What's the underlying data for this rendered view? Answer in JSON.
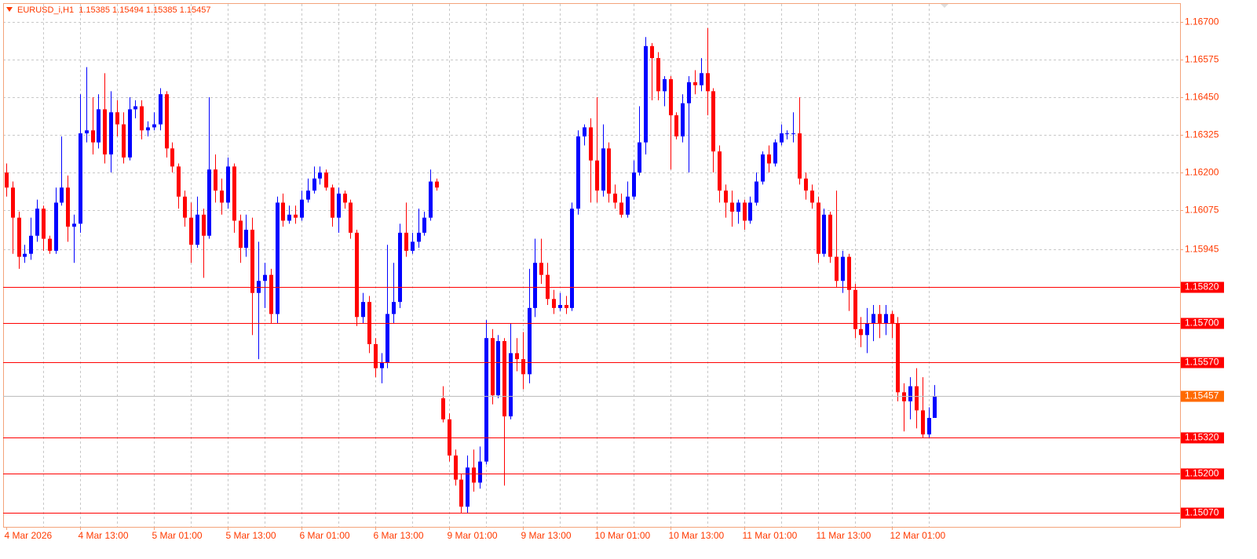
{
  "chart_data": {
    "type": "candlestick",
    "title": "EURUSD_i,H1  1.15385 1.15494 1.15385 1.15457",
    "categories": [
      "4 Mar 2026",
      null,
      null,
      null,
      null,
      null,
      null,
      null,
      null,
      null,
      null,
      null,
      "4 Mar 13:00",
      null,
      null,
      null,
      null,
      null,
      null,
      null,
      null,
      null,
      null,
      null,
      "5 Mar 01:00",
      null,
      null,
      null,
      null,
      null,
      null,
      null,
      null,
      null,
      null,
      null,
      "5 Mar 13:00",
      null,
      null,
      null,
      null,
      null,
      null,
      null,
      null,
      null,
      null,
      null,
      "6 Mar 01:00",
      null,
      null,
      null,
      null,
      null,
      null,
      null,
      null,
      null,
      null,
      null,
      "6 Mar 13:00",
      null,
      null,
      null,
      null,
      null,
      null,
      null,
      null,
      null,
      null,
      null,
      "9 Mar 01:00",
      null,
      null,
      null,
      null,
      null,
      null,
      null,
      null,
      null,
      null,
      null,
      "9 Mar 13:00",
      null,
      null,
      null,
      null,
      null,
      null,
      null,
      null,
      null,
      null,
      null,
      "10 Mar 01:00",
      null,
      null,
      null,
      null,
      null,
      null,
      null,
      null,
      null,
      null,
      null,
      "10 Mar 13:00",
      null,
      null,
      null,
      null,
      null,
      null,
      null,
      null,
      null,
      null,
      null,
      "11 Mar 01:00",
      null,
      null,
      null,
      null,
      null,
      null,
      null,
      null,
      null,
      null,
      null,
      "11 Mar 13:00",
      null,
      null,
      null,
      null,
      null,
      null,
      null,
      null,
      null,
      null,
      null,
      "12 Mar 01:00",
      null,
      null,
      null,
      null,
      null,
      null,
      null
    ],
    "open": [
      1.162,
      1.1615,
      1.1605,
      1.1592,
      1.1593,
      1.1599,
      1.1608,
      1.1598,
      1.1594,
      1.161,
      1.1615,
      1.1602,
      1.1603,
      1.1633,
      1.1634,
      1.163,
      1.1641,
      1.1626,
      1.164,
      1.1636,
      1.1625,
      1.1641,
      1.1642,
      1.1634,
      1.1635,
      1.1636,
      1.1646,
      1.1628,
      1.1622,
      1.1612,
      1.1605,
      1.1596,
      1.1606,
      1.1599,
      1.1621,
      1.1614,
      1.161,
      1.1622,
      1.1604,
      1.1595,
      1.1601,
      1.158,
      1.1584,
      1.1586,
      1.1573,
      1.161,
      1.1604,
      1.1606,
      1.1605,
      1.1611,
      1.1614,
      1.1618,
      1.162,
      1.1615,
      1.1605,
      1.1613,
      1.161,
      1.16,
      1.1572,
      1.1577,
      1.1563,
      1.1555,
      1.1557,
      1.1573,
      1.1577,
      1.16,
      1.1594,
      1.1597,
      1.16,
      1.1605,
      1.1617,
      1.1545,
      1.1538,
      1.1526,
      1.1518,
      1.1509,
      1.1522,
      1.1517,
      1.1524,
      1.1565,
      1.1546,
      1.1564,
      1.1539,
      1.156,
      1.1558,
      1.1553,
      1.1575,
      1.159,
      1.1586,
      1.1578,
      1.1575,
      1.1576,
      1.1575,
      1.1608,
      1.1632,
      1.1635,
      1.1624,
      1.1614,
      1.1628,
      1.1613,
      1.161,
      1.1606,
      1.1612,
      1.162,
      1.163,
      1.1662,
      1.1658,
      1.1647,
      1.1651,
      1.1639,
      1.1632,
      1.1643,
      1.165,
      1.1649,
      1.1653,
      1.1647,
      1.1627,
      1.1614,
      1.161,
      1.1607,
      1.161,
      1.1604,
      1.161,
      1.1617,
      1.1626,
      1.1623,
      1.163,
      1.1633,
      1.1633,
      1.1633,
      1.1618,
      1.1614,
      1.161,
      1.1593,
      1.1606,
      1.1592,
      1.1584,
      1.1592,
      1.1581,
      1.1568,
      1.1566,
      1.157,
      1.1573,
      1.157,
      1.1573,
      1.157,
      1.1547,
      1.1544,
      1.1549,
      1.1541,
      1.1533,
      1.15385
    ],
    "high": [
      1.1623,
      1.1617,
      1.1607,
      1.1596,
      1.1605,
      1.1611,
      1.1609,
      1.1599,
      1.1615,
      1.1632,
      1.1619,
      1.1606,
      1.1646,
      1.1655,
      1.1645,
      1.1646,
      1.1653,
      1.1647,
      1.1644,
      1.164,
      1.1645,
      1.1644,
      1.1644,
      1.1637,
      1.164,
      1.1648,
      1.1647,
      1.163,
      1.1623,
      1.1614,
      1.161,
      1.1612,
      1.1608,
      1.1645,
      1.1626,
      1.1618,
      1.1625,
      1.1623,
      1.1606,
      1.1606,
      1.1605,
      1.1597,
      1.159,
      1.1588,
      1.1612,
      1.1613,
      1.1609,
      1.1609,
      1.1614,
      1.1618,
      1.1622,
      1.1622,
      1.1621,
      1.1616,
      1.1615,
      1.1614,
      1.1611,
      1.1601,
      1.158,
      1.1579,
      1.1565,
      1.156,
      1.1596,
      1.159,
      1.1603,
      1.161,
      1.16,
      1.1608,
      1.1607,
      1.1621,
      1.1618,
      1.1549,
      1.154,
      1.1528,
      1.152,
      1.1526,
      1.1528,
      1.1529,
      1.1571,
      1.1568,
      1.1566,
      1.1565,
      1.157,
      1.1565,
      1.1567,
      1.1588,
      1.1598,
      1.1598,
      1.159,
      1.1581,
      1.158,
      1.1579,
      1.161,
      1.1634,
      1.1636,
      1.1638,
      1.1645,
      1.1636,
      1.163,
      1.1616,
      1.1613,
      1.1617,
      1.1624,
      1.1642,
      1.1665,
      1.1663,
      1.166,
      1.1652,
      1.1652,
      1.164,
      1.1646,
      1.1652,
      1.1654,
      1.1658,
      1.1668,
      1.1648,
      1.1629,
      1.1616,
      1.1614,
      1.1611,
      1.1611,
      1.1612,
      1.162,
      1.1627,
      1.1629,
      1.1631,
      1.1636,
      1.1634,
      1.164,
      1.1645,
      1.162,
      1.1616,
      1.1612,
      1.1608,
      1.1607,
      1.1614,
      1.1594,
      1.1593,
      1.1583,
      1.1572,
      1.1575,
      1.1576,
      1.1576,
      1.1576,
      1.1574,
      1.1572,
      1.155,
      1.1552,
      1.1555,
      1.1552,
      1.1542,
      1.15494
    ],
    "low": [
      1.1612,
      1.1593,
      1.1588,
      1.159,
      1.1591,
      1.1597,
      1.1594,
      1.1593,
      1.1593,
      1.1609,
      1.1597,
      1.159,
      1.16,
      1.163,
      1.1626,
      1.1628,
      1.1623,
      1.162,
      1.1632,
      1.1623,
      1.1624,
      1.1638,
      1.1631,
      1.1632,
      1.1634,
      1.1634,
      1.1625,
      1.162,
      1.1608,
      1.1602,
      1.159,
      1.1595,
      1.1585,
      1.1598,
      1.161,
      1.1606,
      1.1608,
      1.16,
      1.159,
      1.1592,
      1.1566,
      1.1558,
      1.1575,
      1.157,
      1.157,
      1.1602,
      1.1603,
      1.1603,
      1.1604,
      1.161,
      1.1613,
      1.1616,
      1.1614,
      1.1602,
      1.16,
      1.1608,
      1.1598,
      1.1569,
      1.157,
      1.156,
      1.1552,
      1.155,
      1.1555,
      1.157,
      1.1575,
      1.1592,
      1.1593,
      1.1595,
      1.1599,
      1.1604,
      1.1614,
      1.1537,
      1.1524,
      1.1516,
      1.1507,
      1.1507,
      1.1514,
      1.1515,
      1.1523,
      1.1543,
      1.1545,
      1.1516,
      1.1538,
      1.1554,
      1.1548,
      1.155,
      1.1572,
      1.1583,
      1.1576,
      1.1573,
      1.1574,
      1.1573,
      1.1574,
      1.1606,
      1.1629,
      1.161,
      1.161,
      1.1612,
      1.161,
      1.1608,
      1.1605,
      1.1605,
      1.1611,
      1.1619,
      1.1626,
      1.1644,
      1.1644,
      1.1642,
      1.1621,
      1.1631,
      1.163,
      1.162,
      1.1646,
      1.1647,
      1.1639,
      1.162,
      1.161,
      1.1605,
      1.1602,
      1.1603,
      1.1601,
      1.1603,
      1.1609,
      1.1616,
      1.162,
      1.1622,
      1.1629,
      1.1631,
      1.163,
      1.1616,
      1.1611,
      1.1608,
      1.159,
      1.1592,
      1.159,
      1.1582,
      1.158,
      1.1574,
      1.1565,
      1.1562,
      1.156,
      1.1564,
      1.1565,
      1.1566,
      1.1565,
      1.1544,
      1.1534,
      1.1538,
      1.1535,
      1.1532,
      1.1532,
      1.15385
    ],
    "close": [
      1.1615,
      1.1605,
      1.1592,
      1.1593,
      1.1599,
      1.1608,
      1.1598,
      1.1594,
      1.161,
      1.1615,
      1.1602,
      1.1603,
      1.1633,
      1.1634,
      1.163,
      1.1641,
      1.1626,
      1.164,
      1.1636,
      1.1625,
      1.1641,
      1.1642,
      1.1634,
      1.1635,
      1.1636,
      1.1646,
      1.1628,
      1.1622,
      1.1612,
      1.1605,
      1.1596,
      1.1606,
      1.1599,
      1.1621,
      1.1614,
      1.161,
      1.1622,
      1.1604,
      1.1595,
      1.1601,
      1.158,
      1.1584,
      1.1586,
      1.1573,
      1.161,
      1.1604,
      1.1606,
      1.1605,
      1.1611,
      1.1614,
      1.1618,
      1.162,
      1.1615,
      1.1605,
      1.1613,
      1.161,
      1.16,
      1.1572,
      1.1577,
      1.1563,
      1.1555,
      1.1557,
      1.1573,
      1.1577,
      1.16,
      1.1594,
      1.1597,
      1.16,
      1.1605,
      1.1617,
      1.1615,
      1.1538,
      1.1526,
      1.1518,
      1.1509,
      1.1522,
      1.1517,
      1.1524,
      1.1565,
      1.1546,
      1.1564,
      1.1539,
      1.156,
      1.1558,
      1.1553,
      1.1575,
      1.159,
      1.1586,
      1.1578,
      1.1575,
      1.1576,
      1.1575,
      1.1608,
      1.1632,
      1.1635,
      1.1624,
      1.1614,
      1.1628,
      1.1613,
      1.161,
      1.1606,
      1.1612,
      1.162,
      1.163,
      1.1662,
      1.1658,
      1.1647,
      1.1651,
      1.1639,
      1.1632,
      1.1643,
      1.165,
      1.1649,
      1.1653,
      1.1647,
      1.1627,
      1.1614,
      1.161,
      1.1607,
      1.161,
      1.1604,
      1.161,
      1.1617,
      1.1626,
      1.1623,
      1.163,
      1.1633,
      1.1633,
      1.1633,
      1.1618,
      1.1614,
      1.161,
      1.1593,
      1.1606,
      1.1592,
      1.1584,
      1.1592,
      1.1581,
      1.1568,
      1.1566,
      1.157,
      1.1573,
      1.157,
      1.1573,
      1.157,
      1.1547,
      1.1544,
      1.1549,
      1.1541,
      1.1533,
      1.15385,
      1.15457
    ],
    "bull_color": "#0000ff",
    "bear_color": "#ff0000",
    "ylim": [
      1.15023,
      1.1676
    ],
    "yticks": [
      {
        "value": 1.167,
        "label": "1.16700"
      },
      {
        "value": 1.16575,
        "label": "1.16575"
      },
      {
        "value": 1.1645,
        "label": "1.16450"
      },
      {
        "value": 1.16325,
        "label": "1.16325"
      },
      {
        "value": 1.162,
        "label": "1.16200"
      },
      {
        "value": 1.16075,
        "label": "1.16075"
      },
      {
        "value": 1.15945,
        "label": "1.15945"
      }
    ],
    "levels": [
      {
        "value": 1.1582,
        "label": "1.15820"
      },
      {
        "value": 1.157,
        "label": "1.15700"
      },
      {
        "value": 1.1557,
        "label": "1.15570"
      },
      {
        "value": 1.1532,
        "label": "1.15320"
      },
      {
        "value": 1.152,
        "label": "1.15200"
      },
      {
        "value": 1.1507,
        "label": "1.15070"
      }
    ],
    "level_color": "#ff0000",
    "current_price": {
      "value": 1.15457,
      "label": "1.15457"
    },
    "current_color": "#ff6a00",
    "grid": true
  }
}
